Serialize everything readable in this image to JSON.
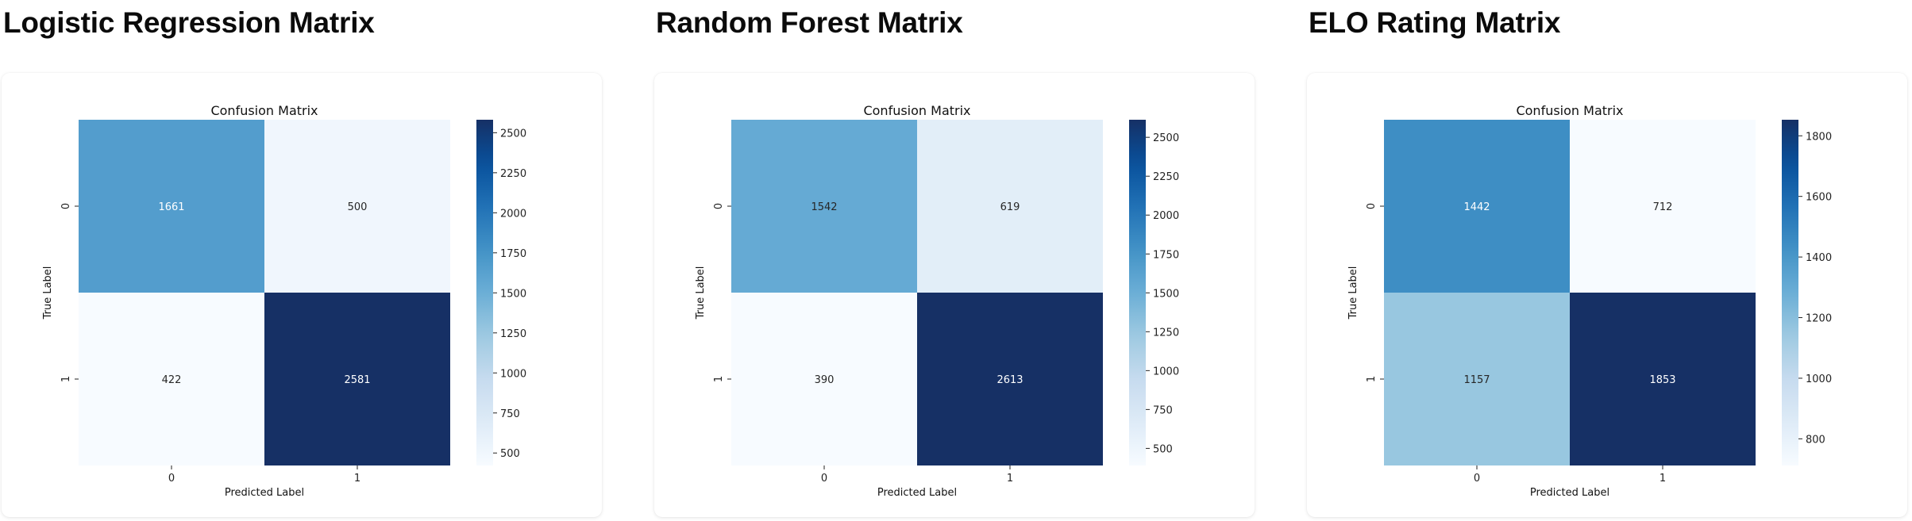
{
  "chart_data": [
    {
      "type": "heatmap",
      "panel_title": "Logistic Regression Matrix",
      "title": "Confusion Matrix",
      "xlabel": "Predicted Label",
      "ylabel": "True Label",
      "x_categories": [
        "0",
        "1"
      ],
      "y_categories": [
        "0",
        "1"
      ],
      "values": [
        [
          1661,
          500
        ],
        [
          422,
          2581
        ]
      ],
      "colormap": "Blues",
      "colorbar": {
        "min": 422,
        "max": 2581,
        "ticks": [
          500,
          750,
          1000,
          1250,
          1500,
          1750,
          2000,
          2250,
          2500
        ]
      }
    },
    {
      "type": "heatmap",
      "panel_title": "Random Forest Matrix",
      "title": "Confusion Matrix",
      "xlabel": "Predicted Label",
      "ylabel": "True Label",
      "x_categories": [
        "0",
        "1"
      ],
      "y_categories": [
        "0",
        "1"
      ],
      "values": [
        [
          1542,
          619
        ],
        [
          390,
          2613
        ]
      ],
      "colormap": "Blues",
      "colorbar": {
        "min": 390,
        "max": 2613,
        "ticks": [
          500,
          750,
          1000,
          1250,
          1500,
          1750,
          2000,
          2250,
          2500
        ]
      }
    },
    {
      "type": "heatmap",
      "panel_title": "ELO Rating Matrix",
      "title": "Confusion Matrix",
      "xlabel": "Predicted Label",
      "ylabel": "True Label",
      "x_categories": [
        "0",
        "1"
      ],
      "y_categories": [
        "0",
        "1"
      ],
      "values": [
        [
          1442,
          712
        ],
        [
          1157,
          1853
        ]
      ],
      "colormap": "Blues",
      "colorbar": {
        "min": 712,
        "max": 1853,
        "ticks": [
          800,
          1000,
          1200,
          1400,
          1600,
          1800
        ]
      }
    }
  ]
}
